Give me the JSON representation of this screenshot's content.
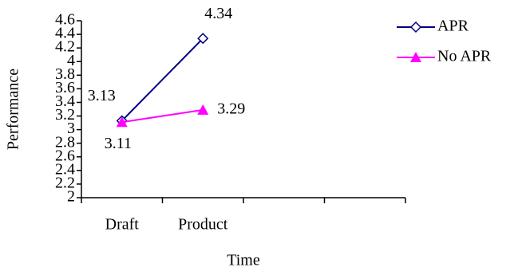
{
  "chart_data": {
    "type": "line",
    "x_label": "Time",
    "y_label": "Performance",
    "categories": [
      "Draft",
      "Product",
      null,
      null
    ],
    "series": [
      {
        "name": "APR",
        "color": "#000080",
        "marker": "diamond",
        "values": [
          3.13,
          4.34,
          null,
          null
        ]
      },
      {
        "name": "No APR",
        "color": "#ff00ff",
        "marker": "triangle",
        "values": [
          3.11,
          3.29,
          null,
          null
        ]
      }
    ],
    "ylim": [
      2,
      4.6
    ],
    "yticks": [
      2,
      2.2,
      2.4,
      2.6,
      2.8,
      3,
      3.2,
      3.4,
      3.6,
      3.8,
      4,
      4.2,
      4.4,
      4.6
    ],
    "legend": "right"
  }
}
